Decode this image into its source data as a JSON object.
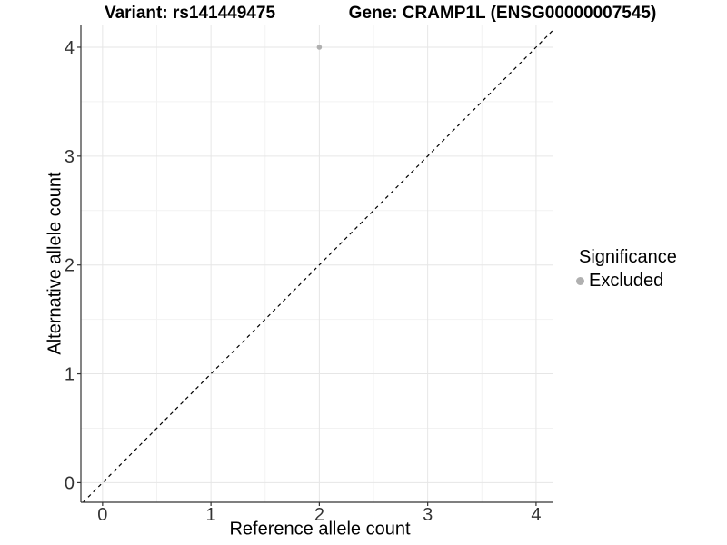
{
  "titles": {
    "left": "Variant: rs141449475",
    "right": "Gene: CRAMP1L (ENSG00000007545)"
  },
  "axes": {
    "x_label": "Reference allele count",
    "y_label": "Alternative allele count"
  },
  "legend": {
    "title": "Significance",
    "items": [
      {
        "label": "Excluded",
        "color": "#b0b0b0"
      }
    ]
  },
  "colors": {
    "point": "#b0b0b0",
    "grid_major": "#e6e6e6",
    "grid_minor": "#f2f2f2",
    "axis_line": "#333333",
    "tick_text": "#333333",
    "dashed_line": "#000000",
    "background": "#ffffff"
  },
  "chart_data": {
    "type": "scatter",
    "title": "Variant: rs141449475 | Gene: CRAMP1L (ENSG00000007545)",
    "xlabel": "Reference allele count",
    "ylabel": "Alternative allele count",
    "xlim": [
      -0.2,
      4.16
    ],
    "ylim": [
      -0.18,
      4.2
    ],
    "x_ticks": [
      0,
      1,
      2,
      3,
      4
    ],
    "y_ticks": [
      0,
      1,
      2,
      3,
      4
    ],
    "minor_grid_step": 0.5,
    "grid": true,
    "legend_position": "right",
    "legend_title": "Significance",
    "series": [
      {
        "name": "Excluded",
        "color": "#b0b0b0",
        "points": [
          {
            "x": 2,
            "y": 4
          }
        ]
      }
    ],
    "reference_line": {
      "type": "identity",
      "equation": "y = x",
      "style": "dashed",
      "color": "#000000"
    }
  }
}
